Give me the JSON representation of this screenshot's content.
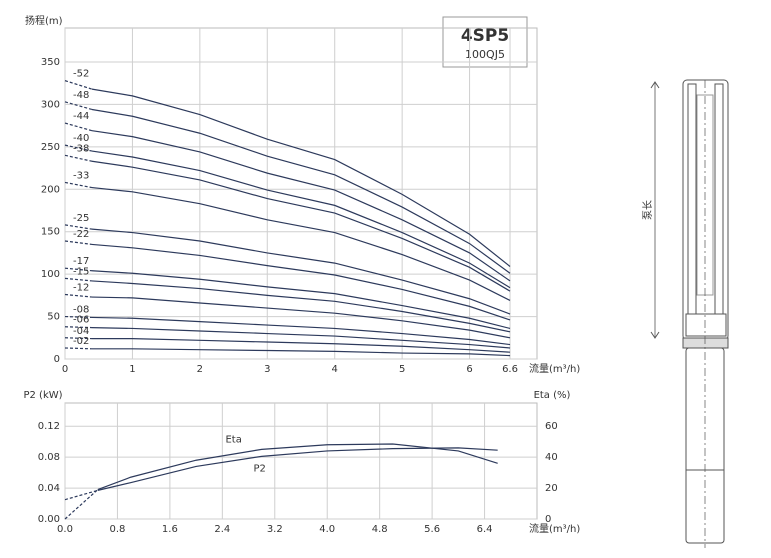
{
  "product": {
    "model": "4SP5",
    "code": "100QJ5",
    "length_label": "泵长"
  },
  "chart_data": [
    {
      "type": "line",
      "y_label": "扬程(m)",
      "x_label": "流量(m³/h)",
      "xlim": [
        0,
        7
      ],
      "xticks": [
        0,
        1,
        2,
        3,
        4,
        5,
        6,
        6.6
      ],
      "ylim": [
        0,
        390
      ],
      "yticks": [
        0,
        50,
        100,
        150,
        200,
        250,
        300,
        350
      ],
      "grid": true,
      "x": [
        0,
        0.4,
        1,
        2,
        3,
        4,
        5,
        6,
        6.6
      ],
      "series": [
        {
          "name": "-52",
          "color": "#2d3a5c",
          "values": [
            328,
            318,
            310,
            288,
            259,
            235,
            194,
            147,
            109
          ]
        },
        {
          "name": "-48",
          "color": "#2d3a5c",
          "values": [
            303,
            294,
            286,
            266,
            239,
            217,
            179,
            136,
            101
          ]
        },
        {
          "name": "-44",
          "color": "#2d3a5c",
          "values": [
            278,
            269,
            262,
            244,
            219,
            199,
            164,
            125,
            92
          ]
        },
        {
          "name": "-40",
          "color": "#2d3a5c",
          "values": [
            252,
            245,
            238,
            222,
            199,
            181,
            149,
            113,
            84
          ]
        },
        {
          "name": "-38",
          "color": "#2d3a5c",
          "values": [
            240,
            233,
            226,
            211,
            189,
            172,
            142,
            108,
            80
          ]
        },
        {
          "name": "-33",
          "color": "#2d3a5c",
          "values": [
            208,
            202,
            197,
            183,
            164,
            149,
            123,
            93,
            69
          ]
        },
        {
          "name": "-25",
          "color": "#2d3a5c",
          "values": [
            158,
            153,
            149,
            139,
            125,
            113,
            93,
            71,
            53
          ]
        },
        {
          "name": "-22",
          "color": "#2d3a5c",
          "values": [
            139,
            135,
            131,
            122,
            110,
            99,
            82,
            62,
            46
          ]
        },
        {
          "name": "-17",
          "color": "#2d3a5c",
          "values": [
            107,
            104,
            101,
            94,
            85,
            77,
            63,
            48,
            36
          ]
        },
        {
          "name": "-15",
          "color": "#2d3a5c",
          "values": [
            95,
            92,
            89,
            83,
            75,
            68,
            56,
            42,
            32
          ]
        },
        {
          "name": "-12",
          "color": "#2d3a5c",
          "values": [
            76,
            73,
            72,
            66,
            60,
            54,
            45,
            34,
            25
          ]
        },
        {
          "name": "-08",
          "color": "#2d3a5c",
          "values": [
            50,
            49,
            48,
            44,
            40,
            36,
            30,
            23,
            17
          ]
        },
        {
          "name": "-06",
          "color": "#2d3a5c",
          "values": [
            38,
            37,
            36,
            33,
            30,
            27,
            22,
            17,
            13
          ]
        },
        {
          "name": "-04",
          "color": "#2d3a5c",
          "values": [
            25,
            24,
            24,
            22,
            20,
            18,
            15,
            11,
            8
          ]
        },
        {
          "name": "-02",
          "color": "#2d3a5c",
          "values": [
            13,
            12,
            12,
            11,
            10,
            9,
            7,
            6,
            4
          ]
        }
      ]
    },
    {
      "type": "line",
      "y_label": "P2 (kW)",
      "y2_label": "Eta (%)",
      "x_label": "流量(m³/h)",
      "xlim": [
        0,
        7.2
      ],
      "xticks": [
        {
          "value": 0,
          "label": "0.0"
        },
        0.8,
        1.6,
        2.4,
        3.2,
        {
          "value": 4,
          "label": "4.0"
        },
        4.8,
        5.6,
        6.4
      ],
      "ylim": [
        0,
        0.15
      ],
      "yticks": [
        {
          "value": 0,
          "label": "0.00"
        },
        0.04,
        0.08,
        0.12
      ],
      "y2lim": [
        0,
        75
      ],
      "y2ticks": [
        0,
        20,
        40,
        60
      ],
      "grid": true,
      "x": [
        0,
        0.5,
        1,
        2,
        3,
        4,
        5,
        6,
        6.6
      ],
      "series": [
        {
          "name": "Eta",
          "color": "#2d3a5c",
          "axis": "y2",
          "values": [
            0,
            19,
            27,
            38,
            45,
            48,
            48.5,
            44,
            36
          ]
        },
        {
          "name": "P2",
          "color": "#2d3a5c",
          "values": [
            0.025,
            0.037,
            0.047,
            0.068,
            0.081,
            0.088,
            0.091,
            0.092,
            0.089
          ]
        }
      ]
    }
  ]
}
